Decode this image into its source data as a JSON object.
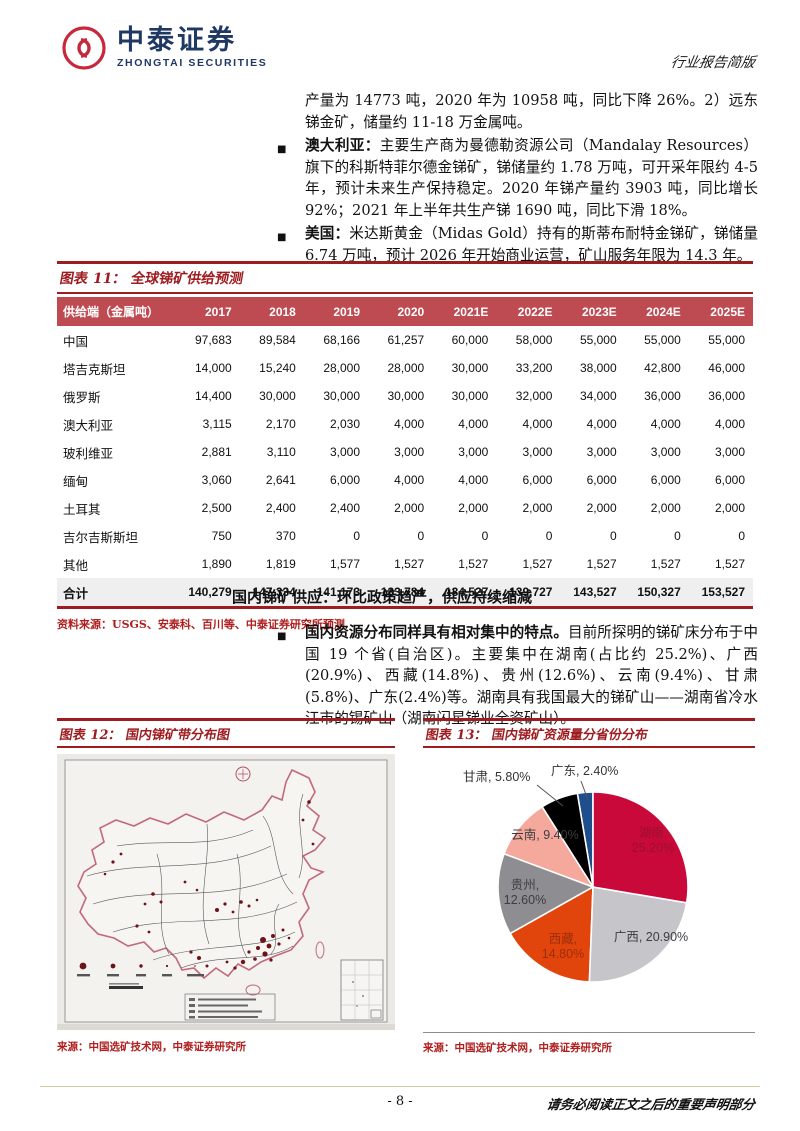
{
  "brand": {
    "name_cn": "中泰证券",
    "name_en": "ZHONGTAI SECURITIES"
  },
  "page": {
    "doc_type": "行业报告简版",
    "page_number": "- 8 -",
    "disclaimer": "请务必阅读正文之后的重要声明部分"
  },
  "intro": {
    "continuation": "产量为 14773 吨，2020 年为 10958 吨，同比下降 26%。2）远东锑金矿，储量约 11-18 万金属吨。",
    "bullets": [
      {
        "label": "澳大利亚：",
        "text": "主要生产商为曼德勒资源公司（Mandalay Resources）旗下的科斯特菲尔德金锑矿，锑储量约 1.78 万吨，可开采年限约 4-5 年，预计未来生产保持稳定。2020 年锑产量约 3903 吨，同比增长 92%；2021 年上半年共生产锑 1690 吨，同比下滑 18%。"
      },
      {
        "label": "美国：",
        "text": "米达斯黄金（Midas Gold）持有的斯蒂布耐特金锑矿，锑储量 6.74 万吨，预计 2026 年开始商业运营，矿山服务年限为 14.3 年。"
      }
    ]
  },
  "table11": {
    "title": "图表 11：  全球锑矿供给预测",
    "columns": [
      "供给端（金属吨）",
      "2017",
      "2018",
      "2019",
      "2020",
      "2021E",
      "2022E",
      "2023E",
      "2024E",
      "2025E"
    ],
    "rows": [
      {
        "label": "中国",
        "values": [
          "97,683",
          "89,584",
          "68,166",
          "61,257",
          "60,000",
          "58,000",
          "55,000",
          "55,000",
          "55,000"
        ]
      },
      {
        "label": "塔吉克斯坦",
        "values": [
          "14,000",
          "15,240",
          "28,000",
          "28,000",
          "30,000",
          "33,200",
          "38,000",
          "42,800",
          "46,000"
        ]
      },
      {
        "label": "俄罗斯",
        "values": [
          "14,400",
          "30,000",
          "30,000",
          "30,000",
          "30,000",
          "32,000",
          "34,000",
          "36,000",
          "36,000"
        ]
      },
      {
        "label": "澳大利亚",
        "values": [
          "3,115",
          "2,170",
          "2,030",
          "4,000",
          "4,000",
          "4,000",
          "4,000",
          "4,000",
          "4,000"
        ]
      },
      {
        "label": "玻利维亚",
        "values": [
          "2,881",
          "3,110",
          "3,000",
          "3,000",
          "3,000",
          "3,000",
          "3,000",
          "3,000",
          "3,000"
        ]
      },
      {
        "label": "缅甸",
        "values": [
          "3,060",
          "2,641",
          "6,000",
          "4,000",
          "4,000",
          "6,000",
          "6,000",
          "6,000",
          "6,000"
        ]
      },
      {
        "label": "土耳其",
        "values": [
          "2,500",
          "2,400",
          "2,400",
          "2,000",
          "2,000",
          "2,000",
          "2,000",
          "2,000",
          "2,000"
        ]
      },
      {
        "label": "吉尔吉斯斯坦",
        "values": [
          "750",
          "370",
          "0",
          "0",
          "0",
          "0",
          "0",
          "0",
          "0"
        ]
      },
      {
        "label": "其他",
        "values": [
          "1,890",
          "1,819",
          "1,577",
          "1,527",
          "1,527",
          "1,527",
          "1,527",
          "1,527",
          "1,527"
        ]
      }
    ],
    "total": {
      "label": "合计",
      "values": [
        "140,279",
        "147,334",
        "141,173",
        "133,784",
        "134,527",
        "139,727",
        "143,527",
        "150,327",
        "153,527"
      ]
    },
    "source": "资料来源：USGS、安泰科、百川等、中泰证券研究所预测"
  },
  "domestic": {
    "heading": "国内锑矿供应：环比政策趋严，供应持续缩减",
    "bullet_lead": "国内资源分布同样具有相对集中的特点。",
    "bullet_text": "目前所探明的锑矿床分布于中国 19 个省(自治区)。主要集中在湖南(占比约 25.2%)、广西(20.9%)、西藏(14.8%)、贵州(12.6%)、云南(9.4%)、甘肃(5.8%)、广东(2.4%)等。湖南具有我国最大的锑矿山——湖南省冷水江市的锡矿山（湖南闪星锑业全资矿山）。"
  },
  "fig12": {
    "title": "图表 12：  国内锑矿带分布图",
    "source": "来源：中国选矿技术网，中泰证券研究所"
  },
  "fig13": {
    "title": "图表 13：  国内锑矿资源量分省份分布",
    "source": "来源：中国选矿技术网，中泰证券研究所"
  },
  "chart_data": {
    "type": "pie",
    "title": "国内锑矿资源量分省份分布",
    "legend_position": "none",
    "start_angle_deg": 0,
    "direction": "clockwise",
    "slices": [
      {
        "name": "湖南",
        "value": 25.2,
        "label": "湖南, 25.20%",
        "color": "#C9093A"
      },
      {
        "name": "广西",
        "value": 20.9,
        "label": "广西, 20.90%",
        "color": "#C6C6CA"
      },
      {
        "name": "西藏",
        "value": 14.8,
        "label": "西藏, 14.80%",
        "color": "#E2450C"
      },
      {
        "name": "贵州",
        "value": 12.6,
        "label": "贵州, 12.60%",
        "color": "#8E8E92"
      },
      {
        "name": "云南",
        "value": 9.4,
        "label": "云南, 9.40%",
        "color": "#F5A89C"
      },
      {
        "name": "甘肃",
        "value": 5.8,
        "label": "甘肃, 5.80%",
        "color": "#000000"
      },
      {
        "name": "广东",
        "value": 2.4,
        "label": "广东, 2.40%",
        "color": "#1F4E8C"
      }
    ]
  }
}
